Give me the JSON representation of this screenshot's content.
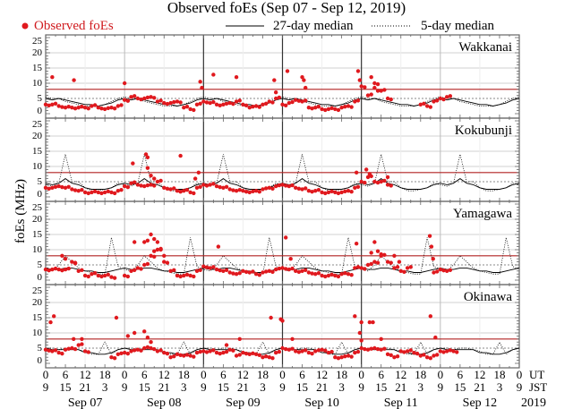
{
  "chart_data": {
    "type": "scatter",
    "title": "Observed foEs (Sep 07 - Sep 12, 2019)",
    "ylabel": "foEs (MHz)",
    "ylim": [
      0,
      25
    ],
    "yticks": [
      0,
      5,
      10,
      15,
      20,
      25
    ],
    "reference_line_mhz": 8,
    "xlim_hours": [
      0,
      144
    ],
    "legend": {
      "observed": "Observed foEs",
      "median27": "27-day median",
      "median5": "5-day median",
      "placement": "top"
    },
    "x_axis": {
      "ut_labels": [
        "0",
        "6",
        "12",
        "18"
      ],
      "jst_labels": [
        "9",
        "15",
        "21",
        "3"
      ],
      "ut_final": "0",
      "jst_final": "9",
      "ut_unit": "UT",
      "jst_unit": "JST",
      "days": [
        "Sep 07",
        "Sep 08",
        "Sep 09",
        "Sep 10",
        "Sep 11",
        "Sep 12"
      ],
      "year": "2019"
    },
    "colors": {
      "observed": "#e0191e",
      "reference": "#b22222",
      "median": "#000000",
      "grid": "#d0d0d0"
    },
    "observed_step_hours": 2,
    "median_step_hours": 2,
    "stations": [
      {
        "name": "Wakkanai",
        "observed": [
          3,
          3,
          2.5,
          2,
          2,
          2,
          2,
          2.5,
          2,
          1.5,
          2,
          2.5,
          4.5,
          5.5,
          5,
          5,
          5.5,
          4,
          3.5,
          3.5,
          4,
          2,
          1.5,
          3,
          4,
          3.5,
          3,
          3,
          3.5,
          4,
          3,
          2,
          2.5,
          3,
          4,
          5,
          3,
          3.5,
          4.5,
          4,
          2,
          2,
          1.5,
          1.5,
          1.5,
          2,
          2.5,
          4,
          9,
          6,
          10,
          7.5,
          5,
          null,
          null,
          null,
          null,
          3,
          2.5,
          4,
          5,
          5.5,
          null
        ],
        "observed_extra": [
          [
            2,
            12
          ],
          [
            8.6,
            11
          ],
          [
            24,
            10
          ],
          [
            47,
            10.5
          ],
          [
            47.5,
            8.5
          ],
          [
            51,
            12.8
          ],
          [
            58,
            12
          ],
          [
            69.5,
            11
          ],
          [
            70,
            7
          ],
          [
            73.5,
            14
          ],
          [
            78,
            12
          ],
          [
            78.5,
            11
          ],
          [
            79,
            8.5
          ],
          [
            95,
            14
          ],
          [
            95.5,
            11
          ],
          [
            99,
            12
          ],
          [
            100,
            8.5
          ],
          [
            101,
            7.5
          ]
        ],
        "median27_daily": [
          5,
          4.5,
          5,
          4.5,
          4,
          3.5,
          3,
          3,
          2.5,
          3,
          3.5,
          4.5
        ],
        "median5_daily": [
          5.5,
          5,
          5,
          4,
          3.5,
          3,
          2.5,
          2.5,
          2.5,
          3,
          4,
          5
        ]
      },
      {
        "name": "Kokubunji",
        "observed": [
          3,
          3,
          3.5,
          3,
          2.5,
          2,
          1.5,
          1.5,
          1.5,
          1.5,
          1.5,
          2,
          3.5,
          4.5,
          4,
          3.5,
          4,
          5,
          3,
          2.5,
          2,
          2,
          1.5,
          3,
          4,
          4,
          3.5,
          3,
          2.5,
          2,
          2,
          1.5,
          2,
          2.5,
          3,
          3.5,
          4,
          3.5,
          3,
          2.5,
          2,
          2,
          1.5,
          1.5,
          1.5,
          1.5,
          2,
          3,
          5,
          6.5,
          5,
          5,
          4,
          null,
          null,
          null,
          null,
          null,
          null,
          null,
          null,
          null,
          null
        ],
        "observed_extra": [
          [
            26.5,
            11
          ],
          [
            30.5,
            14
          ],
          [
            31,
            13
          ],
          [
            31,
            9.5
          ],
          [
            32,
            7
          ],
          [
            33,
            6
          ],
          [
            41,
            13.5
          ],
          [
            46.5,
            8
          ],
          [
            45.5,
            6
          ],
          [
            94.5,
            8
          ],
          [
            97.5,
            9
          ],
          [
            98.5,
            7.5
          ],
          [
            104,
            6.5
          ]
        ],
        "median27_daily": [
          4.5,
          4,
          4.5,
          6,
          4.5,
          4,
          3,
          2.5,
          2.5,
          2.5,
          3,
          4
        ],
        "median5_daily": [
          4,
          3.5,
          4.5,
          14,
          5,
          5,
          3,
          2,
          2,
          2.5,
          3,
          4.5
        ]
      },
      {
        "name": "Yamagawa",
        "observed": [
          3.5,
          3.5,
          3.5,
          3.5,
          6,
          3,
          1.5,
          2,
          1.5,
          1.5,
          1,
          null,
          1.5,
          3,
          4,
          5,
          8,
          10,
          6,
          3,
          1.5,
          1.5,
          1.5,
          3,
          4.5,
          4,
          3.5,
          3,
          2.5,
          2,
          3,
          2.5,
          2,
          2.5,
          3,
          3.5,
          4,
          3.5,
          3,
          3,
          2.5,
          2,
          1.5,
          1.5,
          1.5,
          2,
          2,
          4,
          4,
          5,
          6,
          8,
          6,
          4,
          3,
          4,
          null,
          null,
          null,
          2.5,
          3.5,
          3,
          null
        ],
        "observed_extra": [
          [
            6,
            7
          ],
          [
            5,
            8
          ],
          [
            9,
            5.5
          ],
          [
            27,
            12.5
          ],
          [
            30,
            12.5
          ],
          [
            31,
            13
          ],
          [
            32,
            15
          ],
          [
            33,
            13.5
          ],
          [
            34,
            12.5
          ],
          [
            33,
            9.5
          ],
          [
            35,
            10
          ],
          [
            36,
            8
          ],
          [
            52.5,
            11
          ],
          [
            73,
            14
          ],
          [
            74.5,
            7
          ],
          [
            94.5,
            12
          ],
          [
            99,
            9
          ],
          [
            100,
            12.5
          ],
          [
            101,
            9.5
          ],
          [
            102,
            8.5
          ],
          [
            106,
            8
          ],
          [
            107.5,
            6
          ],
          [
            116.8,
            14.5
          ],
          [
            117.3,
            11
          ],
          [
            117.8,
            7
          ]
        ],
        "median27_daily": [
          4,
          3.5,
          3.5,
          4,
          4,
          3.5,
          3,
          3,
          2.5,
          2.5,
          3,
          3.5
        ],
        "median5_daily": [
          3.5,
          3,
          5,
          8,
          6,
          4,
          3,
          2.5,
          2,
          2,
          14,
          4.5
        ]
      },
      {
        "name": "Okinawa",
        "observed": [
          4.5,
          4,
          3.5,
          4.5,
          5,
          6,
          4,
          null,
          null,
          null,
          2,
          3,
          3.5,
          4,
          4.5,
          5,
          5,
          4,
          3.5,
          2,
          3,
          2.5,
          2.5,
          3.5,
          4,
          4,
          3.5,
          3.5,
          4.5,
          2.5,
          3.5,
          3,
          3,
          2,
          2,
          3.5,
          5,
          4.5,
          4,
          4,
          3.5,
          4,
          4.5,
          3.5,
          2,
          2,
          2.5,
          3.5,
          5,
          4.5,
          5,
          4.5,
          3,
          2,
          4,
          4,
          3.5,
          2.5,
          2,
          2.5,
          4,
          4,
          4
        ],
        "observed_extra": [
          [
            1.5,
            13.5
          ],
          [
            2.5,
            15.5
          ],
          [
            8.5,
            8
          ],
          [
            11,
            8
          ],
          [
            21.5,
            15
          ],
          [
            25,
            9
          ],
          [
            27,
            10
          ],
          [
            30,
            10.5
          ],
          [
            31,
            8.5
          ],
          [
            32,
            7
          ],
          [
            55,
            6
          ],
          [
            59,
            8
          ],
          [
            68.5,
            15
          ],
          [
            71.5,
            14.5
          ],
          [
            72,
            14
          ],
          [
            75,
            8
          ],
          [
            94,
            15.5
          ],
          [
            95.5,
            10
          ],
          [
            96,
            13.5
          ],
          [
            96,
            7.5
          ],
          [
            98.5,
            13.5
          ],
          [
            99.5,
            13.5
          ],
          [
            102,
            8
          ],
          [
            117,
            15.5
          ],
          [
            118.5,
            8.5
          ]
        ],
        "median27_daily": [
          5,
          4.5,
          4.5,
          4.5,
          4.5,
          4.5,
          3.5,
          3.5,
          3,
          3,
          3.5,
          4.5
        ],
        "median5_daily": [
          5,
          5,
          4.5,
          5,
          5,
          4.5,
          4,
          3,
          3,
          7,
          3,
          4.5
        ]
      }
    ]
  }
}
